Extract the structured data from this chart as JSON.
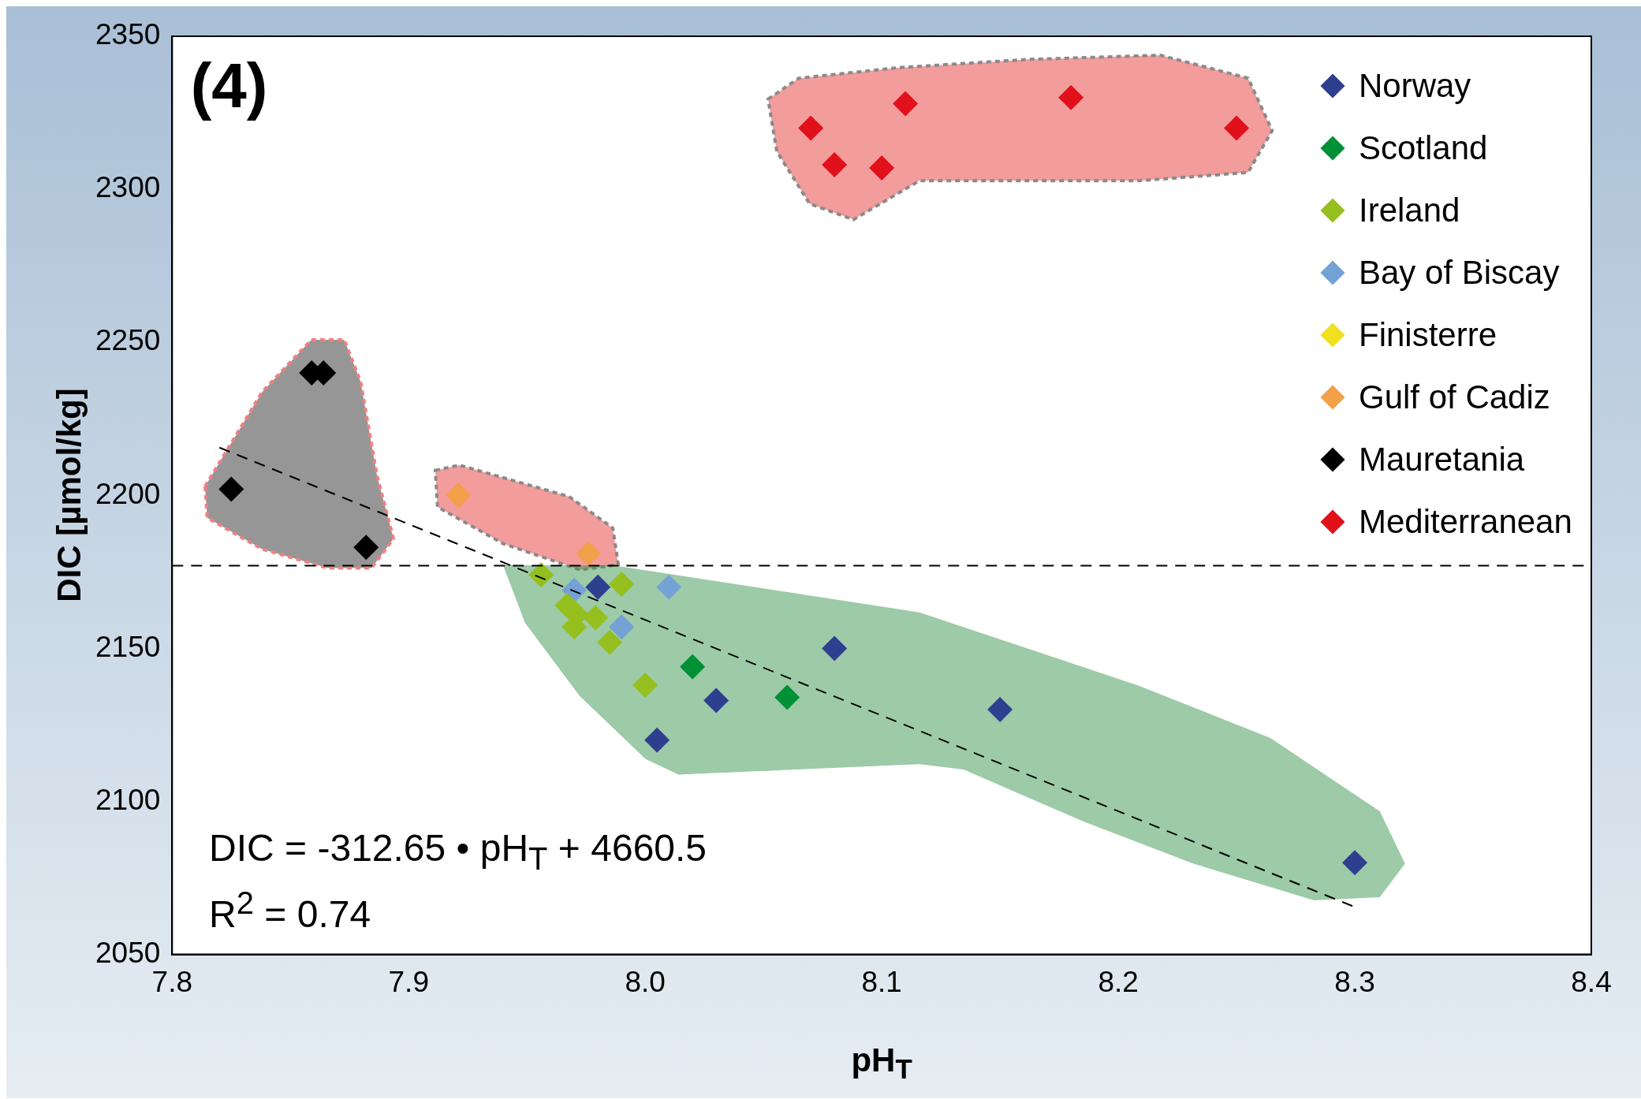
{
  "chart_data": {
    "type": "scatter",
    "xlabel": "pH$_{T}$",
    "ylabel": "DIC [µmol/kg]",
    "xlim": [
      7.8,
      8.4
    ],
    "xticks": [
      7.8,
      7.9,
      {
        "value": 8.0,
        "label": "8.0"
      },
      8.1,
      8.2,
      8.3,
      8.4
    ],
    "ylim": [
      2050,
      2350
    ],
    "yticks": [
      2050,
      2100,
      2150,
      2200,
      2250,
      2300,
      2350
    ],
    "grid": false,
    "legend": "top right",
    "marker": "diamond",
    "annotations": [
      "(4)",
      "DIC = -312.65 • pH$_{T}$ + 4660.5",
      "R$^{2}$ = 0.74"
    ],
    "ref_lines": [
      {
        "axis": "y",
        "value": 2177,
        "line_style": "dashed",
        "color": "#000000"
      }
    ],
    "series": [
      {
        "name": "Norway",
        "color": "#2e3f8f",
        "x": [
          7.98,
          8.005,
          8.03,
          8.08,
          8.15,
          8.3
        ],
        "values": [
          2170,
          2120,
          2133,
          2150,
          2130,
          2080
        ]
      },
      {
        "name": "Scotland",
        "color": "#009036",
        "x": [
          8.02,
          8.06
        ],
        "values": [
          2144,
          2134
        ]
      },
      {
        "name": "Ireland",
        "color": "#95bf1e",
        "x": [
          7.956,
          7.99,
          8.0,
          7.97,
          7.985,
          7.967,
          7.979,
          7.971
        ],
        "values": [
          2174,
          2171,
          2138,
          2157,
          2152,
          2164,
          2160,
          2161
        ]
      },
      {
        "name": "Bay of Biscay",
        "color": "#74a2d4",
        "x": [
          7.97,
          8.01,
          7.99
        ],
        "values": [
          2169,
          2170,
          2157
        ]
      },
      {
        "name": "Finisterre",
        "color": "#f0e020"
      },
      {
        "name": "Gulf of Cadiz",
        "color": "#f2a04a",
        "x": [
          7.921,
          7.976
        ],
        "values": [
          2200,
          2181
        ]
      },
      {
        "name": "Mauretania",
        "color": "#000000",
        "x": [
          7.825,
          7.859,
          7.864,
          7.882
        ],
        "values": [
          2202,
          2240,
          2240,
          2183
        ]
      },
      {
        "name": "Mediterranean",
        "color": "#e0111b",
        "x": [
          8.07,
          8.08,
          8.1,
          8.11,
          8.18,
          8.25
        ],
        "values": [
          2320,
          2308,
          2307,
          2328,
          2330,
          2320
        ]
      },
      {
        "type": "line",
        "color": "#000000",
        "line_style": "dashed",
        "marker": "none",
        "x": [
          7.82,
          8.3
        ],
        "values": [
          2215.6,
          2065.5
        ]
      }
    ]
  }
}
